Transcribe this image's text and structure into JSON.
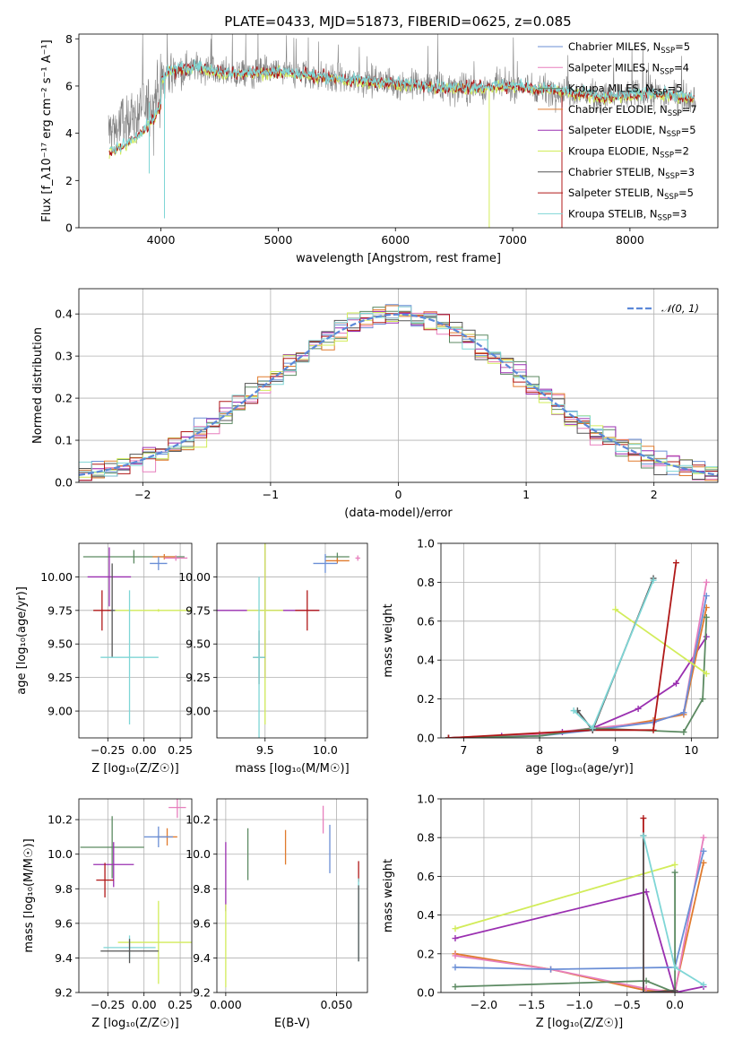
{
  "title": "PLATE=0433, MJD=51873, FIBERID=0625, z=0.085",
  "colors": {
    "Chabrier MILES": "#6b8fd6",
    "Salpeter MILES": "#e77fbd",
    "Kroupa MILES": "#5c8a62",
    "Chabrier ELODIE": "#e07b2e",
    "Salpeter ELODIE": "#9a2fb0",
    "Kroupa ELODIE": "#d2ec5a",
    "Chabrier STELIB": "#555555",
    "Salpeter STELIB": "#b01818",
    "Kroupa STELIB": "#7fd6d6",
    "gauss": "#5b88d8"
  },
  "chart_data": [
    {
      "id": "spectrum",
      "type": "line",
      "xlabel": "wavelength [Angstrom, rest frame]",
      "ylabel": "Flux [f_λ10⁻¹⁷ erg cm⁻² s⁻¹ A⁻¹]",
      "xlim": [
        3300,
        8750
      ],
      "ylim": [
        0,
        8.2
      ],
      "xticks": [
        4000,
        5000,
        6000,
        7000,
        8000
      ],
      "yticks": [
        0,
        2,
        4,
        6,
        8
      ],
      "legend": [
        {
          "label": "Chabrier MILES, N",
          "sub": "SSP",
          "tail": "=5",
          "key": "Chabrier MILES"
        },
        {
          "label": "Salpeter MILES, N",
          "sub": "SSP",
          "tail": "=4",
          "key": "Salpeter MILES"
        },
        {
          "label": "Kroupa MILES, N",
          "sub": "SSP",
          "tail": "=5",
          "key": "Kroupa MILES"
        },
        {
          "label": "Chabrier ELODIE, N",
          "sub": "SSP",
          "tail": "=7",
          "key": "Chabrier ELODIE"
        },
        {
          "label": "Salpeter ELODIE, N",
          "sub": "SSP",
          "tail": "=5",
          "key": "Salpeter ELODIE"
        },
        {
          "label": "Kroupa ELODIE, N",
          "sub": "SSP",
          "tail": "=2",
          "key": "Kroupa ELODIE"
        },
        {
          "label": "Chabrier STELIB, N",
          "sub": "SSP",
          "tail": "=3",
          "key": "Chabrier STELIB"
        },
        {
          "label": "Salpeter STELIB, N",
          "sub": "SSP",
          "tail": "=5",
          "key": "Salpeter STELIB"
        },
        {
          "label": "Kroupa STELIB, N",
          "sub": "SSP",
          "tail": "=3",
          "key": "Kroupa STELIB"
        }
      ],
      "data_trend": {
        "x": [
          3550,
          3700,
          3850,
          3950,
          4050,
          4300,
          4600,
          5000,
          5500,
          6000,
          6500,
          7000,
          7400,
          7800,
          8200,
          8500
        ],
        "y": [
          4.1,
          4.4,
          5.0,
          5.6,
          6.6,
          6.8,
          6.5,
          6.6,
          6.3,
          6.1,
          5.9,
          6.0,
          5.8,
          5.5,
          5.7,
          5.5
        ]
      }
    },
    {
      "id": "residuals",
      "type": "step",
      "xlabel": "(data-model)/error",
      "ylabel": "Normed distribution",
      "xlim": [
        -2.5,
        2.5
      ],
      "ylim": [
        0,
        0.46
      ],
      "xticks": [
        -2,
        -1,
        0,
        1,
        2
      ],
      "yticks": [
        0.0,
        0.1,
        0.2,
        0.3,
        0.4
      ],
      "legend": [
        {
          "label": "N(0,1)"
        }
      ],
      "gauss": {
        "mu": 0,
        "sigma": 1
      }
    },
    {
      "id": "age_vs_Z",
      "type": "errorbar",
      "xlabel": "Z [log₁₀(Z/Z☉)]",
      "ylabel": "age  [log₁₀(age/yr)]",
      "xlim": [
        -0.45,
        0.33
      ],
      "ylim": [
        8.8,
        10.25
      ],
      "xticks": [
        -0.25,
        0.0,
        0.25
      ],
      "yticks": [
        9.0,
        9.25,
        9.5,
        9.75,
        10.0
      ],
      "points": [
        {
          "s": "Kroupa MILES",
          "x": -0.07,
          "y": 10.15,
          "xerr": 0.35,
          "yerr": 0.05
        },
        {
          "s": "Chabrier ELODIE",
          "x": 0.14,
          "y": 10.15,
          "xerr": 0.08,
          "yerr": 0.02
        },
        {
          "s": "Salpeter MILES",
          "x": 0.22,
          "y": 10.14,
          "xerr": 0.08,
          "yerr": 0.02
        },
        {
          "s": "Chabrier MILES",
          "x": 0.1,
          "y": 10.1,
          "xerr": 0.06,
          "yerr": 0.05
        },
        {
          "s": "Salpeter ELODIE",
          "x": -0.24,
          "y": 10.0,
          "xerr": 0.15,
          "yerr": 0.22
        },
        {
          "s": "Chabrier STELIB",
          "x": -0.22,
          "y": 9.75,
          "xerr": 0.03,
          "yerr": 0.35
        },
        {
          "s": "Salpeter STELIB",
          "x": -0.29,
          "y": 9.75,
          "xerr": 0.06,
          "yerr": 0.15
        },
        {
          "s": "Kroupa ELODIE",
          "x": 0.1,
          "y": 9.75,
          "xerr": 0.3,
          "yerr": 0.01
        },
        {
          "s": "Kroupa STELIB",
          "x": -0.1,
          "y": 9.4,
          "xerr": 0.2,
          "yerr": 0.5
        }
      ]
    },
    {
      "id": "age_vs_mass",
      "type": "errorbar",
      "xlabel": "mass [log₁₀(M/M☉)]",
      "ylabel": "",
      "xlim": [
        9.1,
        10.35
      ],
      "ylim": [
        8.8,
        10.25
      ],
      "xticks": [
        9.5,
        10.0
      ],
      "yticks": [
        9.0,
        9.25,
        9.5,
        9.75,
        10.0
      ],
      "points": [
        {
          "s": "Kroupa MILES",
          "x": 10.1,
          "y": 10.15,
          "xerr": 0.1,
          "yerr": 0.03
        },
        {
          "s": "Chabrier ELODIE",
          "x": 10.1,
          "y": 10.12,
          "xerr": 0.1,
          "yerr": 0.02
        },
        {
          "s": "Salpeter MILES",
          "x": 10.27,
          "y": 10.14,
          "xerr": 0.02,
          "yerr": 0.02
        },
        {
          "s": "Chabrier MILES",
          "x": 10.0,
          "y": 10.1,
          "xerr": 0.1,
          "yerr": 0.07
        },
        {
          "s": "Salpeter ELODIE",
          "x": 9.5,
          "y": 9.75,
          "xerr": 0.45,
          "yerr": 0.5
        },
        {
          "s": "Kroupa ELODIE",
          "x": 9.5,
          "y": 9.75,
          "xerr": 0.15,
          "yerr": 0.85
        },
        {
          "s": "Salpeter STELIB",
          "x": 9.85,
          "y": 9.75,
          "xerr": 0.1,
          "yerr": 0.15
        },
        {
          "s": "Chabrier STELIB",
          "x": 9.45,
          "y": 9.4,
          "xerr": 0.05,
          "yerr": 0.2
        },
        {
          "s": "Kroupa STELIB",
          "x": 9.45,
          "y": 9.4,
          "xerr": 0.05,
          "yerr": 0.6
        }
      ]
    },
    {
      "id": "weight_vs_age",
      "type": "line",
      "xlabel": "age  [log₁₀(age/yr)]",
      "ylabel": "mass weight",
      "xlim": [
        6.7,
        10.35
      ],
      "ylim": [
        0,
        1.0
      ],
      "xticks": [
        7,
        8,
        9,
        10
      ],
      "yticks": [
        0.0,
        0.2,
        0.4,
        0.6,
        0.8,
        1.0
      ],
      "series": [
        {
          "s": "Salpeter ELODIE",
          "x": [
            6.8,
            7.5,
            8.3,
            8.7,
            9.3,
            9.8,
            10.2
          ],
          "y": [
            0.0,
            0.01,
            0.03,
            0.05,
            0.15,
            0.28,
            0.52
          ]
        },
        {
          "s": "Chabrier ELODIE",
          "x": [
            6.8,
            8.0,
            8.7,
            9.5,
            9.9,
            10.2
          ],
          "y": [
            0.0,
            0.02,
            0.04,
            0.09,
            0.12,
            0.67
          ]
        },
        {
          "s": "Salpeter MILES",
          "x": [
            6.8,
            8.0,
            8.7,
            9.5,
            9.9,
            10.2
          ],
          "y": [
            0.0,
            0.02,
            0.05,
            0.08,
            0.13,
            0.8
          ]
        },
        {
          "s": "Chabrier MILES",
          "x": [
            6.8,
            8.0,
            8.7,
            9.5,
            9.9,
            10.2
          ],
          "y": [
            0.0,
            0.01,
            0.04,
            0.08,
            0.13,
            0.73
          ]
        },
        {
          "s": "Kroupa MILES",
          "x": [
            6.8,
            8.0,
            8.7,
            9.9,
            10.15,
            10.2
          ],
          "y": [
            0.0,
            0.01,
            0.05,
            0.03,
            0.2,
            0.62
          ]
        },
        {
          "s": "Kroupa ELODIE",
          "x": [
            9.0,
            10.2
          ],
          "y": [
            0.66,
            0.33
          ]
        },
        {
          "s": "Salpeter STELIB",
          "x": [
            6.8,
            8.7,
            9.5,
            9.8
          ],
          "y": [
            0.0,
            0.04,
            0.04,
            0.9
          ]
        },
        {
          "s": "Chabrier STELIB",
          "x": [
            8.5,
            8.7,
            9.5
          ],
          "y": [
            0.14,
            0.04,
            0.82
          ]
        },
        {
          "s": "Kroupa STELIB",
          "x": [
            8.45,
            8.7,
            9.5
          ],
          "y": [
            0.14,
            0.05,
            0.81
          ]
        }
      ]
    },
    {
      "id": "mass_vs_Z",
      "type": "errorbar",
      "xlabel": "Z [log₁₀(Z/Z☉)]",
      "ylabel": "mass [log₁₀(M/M☉)]",
      "xlim": [
        -0.45,
        0.33
      ],
      "ylim": [
        9.2,
        10.32
      ],
      "xticks": [
        -0.25,
        0.0,
        0.25
      ],
      "yticks": [
        9.2,
        9.4,
        9.6,
        9.8,
        10.0,
        10.2
      ],
      "points": [
        {
          "s": "Salpeter MILES",
          "x": 0.23,
          "y": 10.27,
          "xerr": 0.06,
          "yerr": 0.06
        },
        {
          "s": "Chabrier ELODIE",
          "x": 0.16,
          "y": 10.1,
          "xerr": 0.07,
          "yerr": 0.05
        },
        {
          "s": "Chabrier MILES",
          "x": 0.1,
          "y": 10.1,
          "xerr": 0.1,
          "yerr": 0.06
        },
        {
          "s": "Kroupa MILES",
          "x": -0.22,
          "y": 10.04,
          "xerr": 0.22,
          "yerr": 0.18
        },
        {
          "s": "Salpeter ELODIE",
          "x": -0.21,
          "y": 9.94,
          "xerr": 0.14,
          "yerr": 0.13
        },
        {
          "s": "Salpeter STELIB",
          "x": -0.27,
          "y": 9.85,
          "xerr": 0.06,
          "yerr": 0.1
        },
        {
          "s": "Kroupa ELODIE",
          "x": 0.1,
          "y": 9.49,
          "xerr": 0.28,
          "yerr": 0.24
        },
        {
          "s": "Kroupa STELIB",
          "x": -0.1,
          "y": 9.46,
          "xerr": 0.18,
          "yerr": 0.07
        },
        {
          "s": "Chabrier STELIB",
          "x": -0.1,
          "y": 9.44,
          "xerr": 0.2,
          "yerr": 0.07
        }
      ]
    },
    {
      "id": "mass_vs_ebv",
      "type": "errorbar",
      "xlabel": "E(B-V)",
      "ylabel": "",
      "xlim": [
        -0.004,
        0.064
      ],
      "ylim": [
        9.2,
        10.32
      ],
      "xticks": [
        0.0,
        0.05
      ],
      "yticks": [
        9.2,
        9.4,
        9.6,
        9.8,
        10.0,
        10.2
      ],
      "points": [
        {
          "s": "Salpeter MILES",
          "x": 0.044,
          "y": 10.2,
          "xerr": 0,
          "yerr": 0.08
        },
        {
          "s": "Chabrier ELODIE",
          "x": 0.027,
          "y": 10.04,
          "xerr": 0,
          "yerr": 0.1
        },
        {
          "s": "Chabrier MILES",
          "x": 0.047,
          "y": 10.03,
          "xerr": 0,
          "yerr": 0.14
        },
        {
          "s": "Kroupa MILES",
          "x": 0.01,
          "y": 10.0,
          "xerr": 0,
          "yerr": 0.15
        },
        {
          "s": "Salpeter ELODIE",
          "x": 0.0,
          "y": 9.87,
          "xerr": 0,
          "yerr": 0.2
        },
        {
          "s": "Salpeter STELIB",
          "x": 0.06,
          "y": 9.9,
          "xerr": 0,
          "yerr": 0.06
        },
        {
          "s": "Kroupa STELIB",
          "x": 0.06,
          "y": 9.62,
          "xerr": 0,
          "yerr": 0.24
        },
        {
          "s": "Chabrier STELIB",
          "x": 0.06,
          "y": 9.6,
          "xerr": 0,
          "yerr": 0.22
        },
        {
          "s": "Kroupa ELODIE",
          "x": 0.0,
          "y": 9.47,
          "xerr": 0,
          "yerr": 0.24
        }
      ]
    },
    {
      "id": "weight_vs_Z",
      "type": "line",
      "xlabel": "Z [log₁₀(Z/Z☉)]",
      "ylabel": "mass weight",
      "xlim": [
        -2.45,
        0.45
      ],
      "ylim": [
        0,
        1.0
      ],
      "xticks": [
        -2.0,
        -1.5,
        -1.0,
        -0.5,
        0.0
      ],
      "yticks": [
        0.0,
        0.2,
        0.4,
        0.6,
        0.8,
        1.0
      ],
      "series": [
        {
          "s": "Kroupa ELODIE",
          "x": [
            -2.3,
            0.0
          ],
          "y": [
            0.33,
            0.66
          ]
        },
        {
          "s": "Salpeter ELODIE",
          "x": [
            -2.3,
            -0.3,
            0.0,
            0.3
          ],
          "y": [
            0.28,
            0.52,
            0.0,
            0.03
          ]
        },
        {
          "s": "Chabrier ELODIE",
          "x": [
            -2.3,
            -1.3,
            -0.3,
            0.0,
            0.3
          ],
          "y": [
            0.2,
            0.12,
            0.01,
            0.01,
            0.67
          ]
        },
        {
          "s": "Salpeter MILES",
          "x": [
            -2.3,
            -1.3,
            -0.3,
            0.0,
            0.3
          ],
          "y": [
            0.19,
            0.12,
            0.02,
            0.0,
            0.8
          ]
        },
        {
          "s": "Chabrier MILES",
          "x": [
            -2.3,
            -1.3,
            0.0,
            0.3
          ],
          "y": [
            0.13,
            0.12,
            0.13,
            0.73
          ]
        },
        {
          "s": "Kroupa MILES",
          "x": [
            -2.3,
            -0.3,
            0.0,
            0.0
          ],
          "y": [
            0.03,
            0.06,
            0.0,
            0.62
          ]
        },
        {
          "s": "Salpeter STELIB",
          "x": [
            -0.33,
            -0.33,
            0.0
          ],
          "y": [
            0.9,
            0.0,
            0.0
          ]
        },
        {
          "s": "Chabrier STELIB",
          "x": [
            -0.33,
            -0.33,
            0.0,
            0.0
          ],
          "y": [
            0.81,
            0.0,
            0.01,
            0.0
          ]
        },
        {
          "s": "Kroupa STELIB",
          "x": [
            -0.33,
            0.0,
            0.3
          ],
          "y": [
            0.81,
            0.13,
            0.04
          ]
        }
      ]
    }
  ]
}
